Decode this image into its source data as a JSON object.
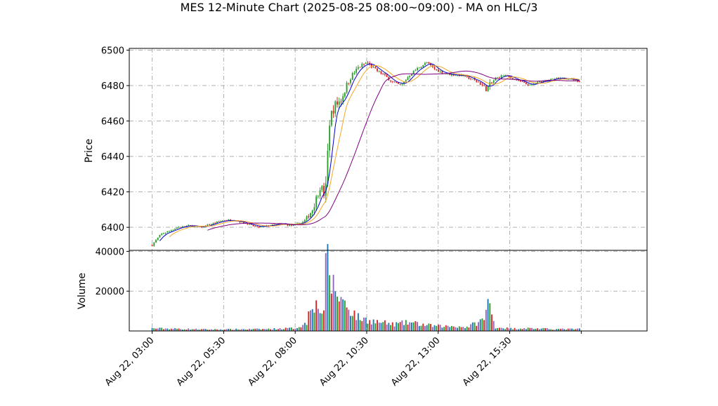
{
  "chart_data": {
    "type": "candlestick",
    "title": "MES 12-Minute Chart (2025-08-25 08:00~09:00) - MA on HLC/3",
    "grid": true,
    "colors": {
      "up": "#2ca02c",
      "down": "#d62728",
      "ma_fast": "#0000cc",
      "ma_mid": "#f5a623",
      "ma_slow": "#800080",
      "vol_a": "#1f77b4",
      "vol_b": "#2ca02c",
      "vol_c": "#d62728",
      "vol_d": "#9467bd"
    },
    "price_panel": {
      "ylabel": "Price",
      "ylim": [
        6387,
        6501
      ],
      "yticks": [
        6400,
        6420,
        6440,
        6460,
        6480,
        6500
      ],
      "ytick_labels": [
        "6400",
        "6420",
        "6440",
        "6460",
        "6480",
        "6500"
      ]
    },
    "volume_panel": {
      "ylabel": "Volume",
      "ylim": [
        0,
        40500
      ],
      "yticks": [
        20000,
        40000
      ],
      "ytick_labels": [
        "20000",
        "40000"
      ]
    },
    "x_axis": {
      "range_hours": [
        2.2,
        20.3
      ],
      "ticks": [
        3.0,
        5.5,
        8.0,
        10.5,
        13.0,
        15.5,
        18.0
      ],
      "tick_labels": [
        "Aug 22, 03:00",
        "Aug 22, 05:30",
        "Aug 22, 08:00",
        "Aug 22, 10:30",
        "Aug 22, 13:00",
        "Aug 22, 15:30",
        ""
      ]
    },
    "price_anchors": [
      [
        3.0,
        6390
      ],
      [
        3.3,
        6396
      ],
      [
        3.6,
        6398
      ],
      [
        3.9,
        6400
      ],
      [
        4.3,
        6401
      ],
      [
        4.7,
        6400
      ],
      [
        5.1,
        6402
      ],
      [
        5.5,
        6404
      ],
      [
        5.9,
        6404
      ],
      [
        6.3,
        6402
      ],
      [
        6.7,
        6400
      ],
      [
        7.1,
        6401
      ],
      [
        7.5,
        6402
      ],
      [
        7.9,
        6401
      ],
      [
        8.3,
        6403
      ],
      [
        8.6,
        6410
      ],
      [
        8.9,
        6424
      ],
      [
        9.05,
        6416
      ],
      [
        9.2,
        6460
      ],
      [
        9.35,
        6468
      ],
      [
        9.6,
        6472
      ],
      [
        9.9,
        6484
      ],
      [
        10.2,
        6490
      ],
      [
        10.5,
        6493
      ],
      [
        10.8,
        6489
      ],
      [
        11.1,
        6486
      ],
      [
        11.4,
        6482
      ],
      [
        11.7,
        6480
      ],
      [
        12.0,
        6486
      ],
      [
        12.3,
        6490
      ],
      [
        12.6,
        6493
      ],
      [
        12.9,
        6489
      ],
      [
        13.2,
        6487
      ],
      [
        13.5,
        6486
      ],
      [
        13.8,
        6486
      ],
      [
        14.1,
        6484
      ],
      [
        14.4,
        6482
      ],
      [
        14.7,
        6478
      ],
      [
        15.0,
        6484
      ],
      [
        15.3,
        6486
      ],
      [
        15.6,
        6484
      ],
      [
        15.9,
        6482
      ],
      [
        16.2,
        6480
      ],
      [
        16.5,
        6482
      ],
      [
        16.8,
        6483
      ],
      [
        17.2,
        6484
      ],
      [
        17.6,
        6484
      ],
      [
        18.0,
        6482
      ]
    ],
    "volume_profile": [
      [
        3.0,
        1400
      ],
      [
        5.0,
        800
      ],
      [
        7.0,
        1000
      ],
      [
        8.0,
        1500
      ],
      [
        8.4,
        4000
      ],
      [
        8.55,
        17000
      ],
      [
        8.75,
        13000
      ],
      [
        9.0,
        10000
      ],
      [
        9.1,
        39500
      ],
      [
        9.25,
        26000
      ],
      [
        9.5,
        19000
      ],
      [
        9.8,
        13500
      ],
      [
        10.2,
        7000
      ],
      [
        10.6,
        5500
      ],
      [
        11.0,
        4500
      ],
      [
        11.4,
        3500
      ],
      [
        12.0,
        4500
      ],
      [
        12.6,
        3000
      ],
      [
        13.0,
        2500
      ],
      [
        13.6,
        2500
      ],
      [
        14.0,
        2000
      ],
      [
        14.6,
        6000
      ],
      [
        14.75,
        15500
      ],
      [
        15.0,
        2000
      ],
      [
        15.6,
        1200
      ],
      [
        16.0,
        1500
      ],
      [
        17.0,
        1000
      ],
      [
        18.0,
        1000
      ]
    ],
    "series": [
      {
        "key": "ma_fast",
        "period": 5
      },
      {
        "key": "ma_mid",
        "period": 10
      },
      {
        "key": "ma_slow",
        "period": 30
      }
    ],
    "bar_interval_hours": 0.0667
  }
}
